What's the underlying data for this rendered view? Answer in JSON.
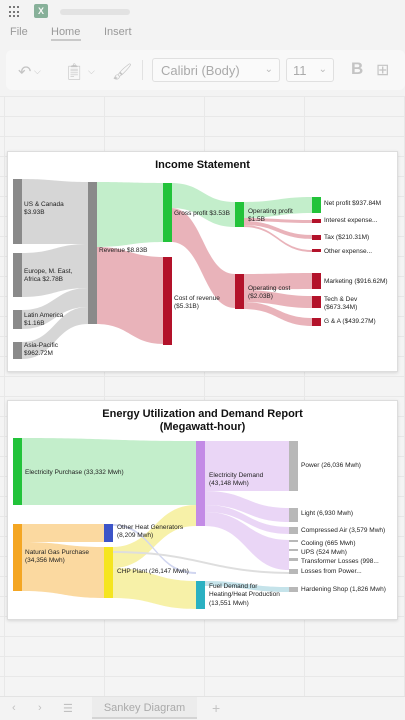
{
  "ribbon": {
    "tabs": [
      "File",
      "Home",
      "Insert"
    ],
    "active_tab": "Home"
  },
  "toolbar": {
    "font_name": "Calibri (Body)",
    "font_size": "11",
    "bold_label": "B"
  },
  "income_chart": {
    "title": "Income Statement",
    "nodes": {
      "us": [
        "US & Canada",
        "$3.93B"
      ],
      "eu": [
        "Europe, M. East,",
        "Africa $2.78B"
      ],
      "la": [
        "Latin America",
        "$1.16B"
      ],
      "ap": [
        "Asia-Pacific",
        "$962.72M"
      ],
      "rev": [
        "Revenue $8.83B"
      ],
      "gp": [
        "Gross profit $3.53B"
      ],
      "cor": [
        "Cost of revenue",
        "($5.31B)"
      ],
      "op": [
        "Operating profit",
        "$1.5B"
      ],
      "oc": [
        "Operating cost",
        "($2.03B)"
      ],
      "np": [
        "Net profit $937.84M"
      ],
      "ie": [
        "Interest expense..."
      ],
      "tax": [
        "Tax ($210.31M)"
      ],
      "oe": [
        "Other expense..."
      ],
      "mk": [
        "Marketing ($916.62M)"
      ],
      "td": [
        "Tech & Dev",
        "($673.34M)"
      ],
      "ga": [
        "G & A ($439.27M)"
      ]
    }
  },
  "energy_chart": {
    "title_line1": "Energy Utilization and Demand Report",
    "title_line2": "(Megawatt-hour)",
    "nodes": {
      "ep": [
        "Electricity Purchase (33,332 Mwh)"
      ],
      "ng": [
        "Natural Gas Purchase",
        "(34,356 Mwh)"
      ],
      "oh": [
        "Other Heat Generators",
        "(8,209 Mwh)"
      ],
      "chp": [
        "CHP Plant (26,147 Mwh)"
      ],
      "ed": [
        "Electricity Demand",
        "(43,148 Mwh)"
      ],
      "fd": [
        "Fuel Demand for",
        "Heating/Heat Production",
        "(13,551 Mwh)"
      ],
      "pw": [
        "Power (26,036 Mwh)"
      ],
      "lt": [
        "Light (6,930 Mwh)"
      ],
      "ca": [
        "Compressed Air (3,579 Mwh)"
      ],
      "co": [
        "Cooling (665 Mwh)"
      ],
      "ups": [
        "UPS (524 Mwh)"
      ],
      "tl": [
        "Transformer Losses (998..."
      ],
      "lp": [
        "Losses from Power..."
      ],
      "hs": [
        "Hardening Shop (1,826 Mwh)"
      ]
    }
  },
  "sheets": {
    "active": "Sankey Diagram",
    "add_label": "+"
  },
  "colors": {
    "grey": "#8a8a8a",
    "green": "#22c33a",
    "red": "#b3122a",
    "light_green": "#b9ecc3",
    "light_red": "#e6a6ae",
    "purple": "#c38be6",
    "orange": "#f4a623",
    "yellow": "#f5e51f",
    "blue": "#3c54c8",
    "teal": "#2bb1c2",
    "silver": "#b8b8b8"
  }
}
